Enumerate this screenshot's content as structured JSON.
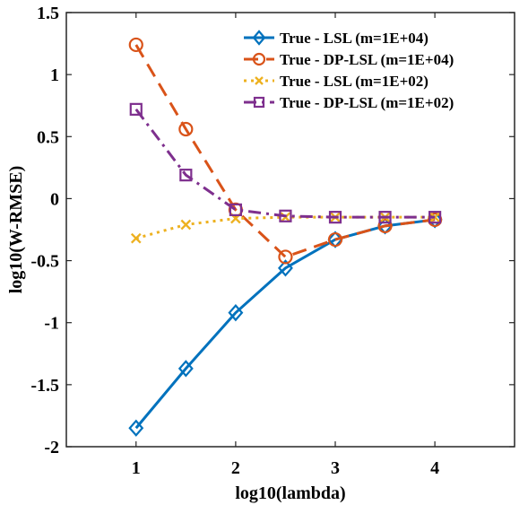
{
  "chart_data": {
    "type": "line",
    "title": "",
    "xlabel": "log10(lambda)",
    "ylabel": "log10(W-RMSE)",
    "xlim": [
      0.3,
      4.8
    ],
    "ylim": [
      -2,
      1.5
    ],
    "xticks": [
      1,
      2,
      3,
      4
    ],
    "yticks": [
      -2,
      -1.5,
      -1,
      -0.5,
      0,
      0.5,
      1,
      1.5
    ],
    "xtick_labels": [
      "1",
      "2",
      "3",
      "4"
    ],
    "ytick_labels": [
      "-2",
      "-1.5",
      "-1",
      "-0.5",
      "0",
      "0.5",
      "1",
      "1.5"
    ],
    "grid": false,
    "legend_position": "top-right",
    "x": [
      1,
      1.5,
      2,
      2.5,
      3,
      3.5,
      4
    ],
    "series": [
      {
        "name": "True - LSL (m=1E+04)",
        "values": [
          -1.85,
          -1.37,
          -0.92,
          -0.56,
          -0.33,
          -0.22,
          -0.17
        ],
        "color": "#0072BD",
        "line_style": "solid",
        "marker": "diamond"
      },
      {
        "name": "True - DP-LSL (m=1E+04)",
        "values": [
          1.24,
          0.56,
          -0.09,
          -0.47,
          -0.33,
          -0.22,
          -0.17
        ],
        "color": "#D95319",
        "line_style": "dashed",
        "marker": "circle"
      },
      {
        "name": "True - LSL (m=1E+02)",
        "values": [
          -0.32,
          -0.21,
          -0.16,
          -0.15,
          -0.15,
          -0.15,
          -0.15
        ],
        "color": "#EDB120",
        "line_style": "dotted",
        "marker": "x"
      },
      {
        "name": "True - DP-LSL (m=1E+02)",
        "values": [
          0.72,
          0.19,
          -0.09,
          -0.14,
          -0.15,
          -0.15,
          -0.15
        ],
        "color": "#7E2F8E",
        "line_style": "dashdot",
        "marker": "square"
      }
    ]
  }
}
